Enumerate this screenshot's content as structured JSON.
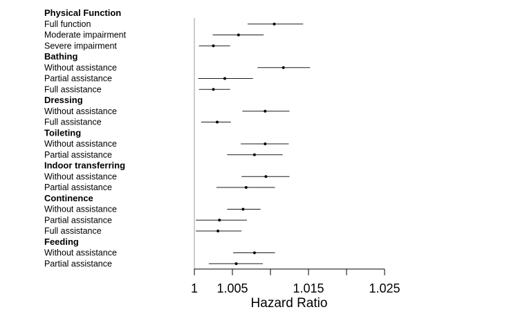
{
  "chart_data": {
    "type": "forest",
    "xlabel": "Hazard Ratio",
    "x_ticks": [
      1,
      1.005,
      1.01,
      1.015,
      1.02,
      1.025
    ],
    "x_tick_labels": [
      "1",
      "1.005",
      "",
      "1.015",
      "",
      "1.025"
    ],
    "xlim": [
      1.0,
      1.025
    ],
    "reference_line": 1.0,
    "groups": [
      {
        "name": "Physical Function",
        "rows": [
          {
            "label": "Full function",
            "estimate": 1.0105,
            "ci_low": 1.007,
            "ci_high": 1.0143
          },
          {
            "label": "Moderate impairment",
            "estimate": 1.0058,
            "ci_low": 1.0024,
            "ci_high": 1.0091
          },
          {
            "label": "Severe impairment",
            "estimate": 1.0025,
            "ci_low": 1.0006,
            "ci_high": 1.0047
          }
        ]
      },
      {
        "name": "Bathing",
        "rows": [
          {
            "label": "Without assistance",
            "estimate": 1.0117,
            "ci_low": 1.0083,
            "ci_high": 1.0152
          },
          {
            "label": "Partial assistance",
            "estimate": 1.004,
            "ci_low": 1.0005,
            "ci_high": 1.0077
          },
          {
            "label": "Full assistance",
            "estimate": 1.0025,
            "ci_low": 1.0006,
            "ci_high": 1.0047
          }
        ]
      },
      {
        "name": "Dressing",
        "rows": [
          {
            "label": "Without assistance",
            "estimate": 1.0093,
            "ci_low": 1.0063,
            "ci_high": 1.0125
          },
          {
            "label": "Full assistance",
            "estimate": 1.003,
            "ci_low": 1.0009,
            "ci_high": 1.0048
          }
        ]
      },
      {
        "name": "Toileting",
        "rows": [
          {
            "label": "Without assistance",
            "estimate": 1.0093,
            "ci_low": 1.0061,
            "ci_high": 1.0124
          },
          {
            "label": "Partial assistance",
            "estimate": 1.0079,
            "ci_low": 1.0043,
            "ci_high": 1.0116
          }
        ]
      },
      {
        "name": "Indoor transferring",
        "rows": [
          {
            "label": "Without assistance",
            "estimate": 1.0094,
            "ci_low": 1.0062,
            "ci_high": 1.0125
          },
          {
            "label": "Partial assistance",
            "estimate": 1.0068,
            "ci_low": 1.0029,
            "ci_high": 1.0106
          }
        ]
      },
      {
        "name": "Continence",
        "rows": [
          {
            "label": "Without assistance",
            "estimate": 1.0064,
            "ci_low": 1.0043,
            "ci_high": 1.0087
          },
          {
            "label": "Partial assistance",
            "estimate": 1.0033,
            "ci_low": 1.0002,
            "ci_high": 1.0069
          },
          {
            "label": "Full assistance",
            "estimate": 1.0031,
            "ci_low": 1.0002,
            "ci_high": 1.0062
          }
        ]
      },
      {
        "name": "Feeding",
        "rows": [
          {
            "label": "Without assistance",
            "estimate": 1.0079,
            "ci_low": 1.0051,
            "ci_high": 1.0106
          },
          {
            "label": "Partial assistance",
            "estimate": 1.0055,
            "ci_low": 1.0019,
            "ci_high": 1.009
          }
        ]
      }
    ]
  }
}
